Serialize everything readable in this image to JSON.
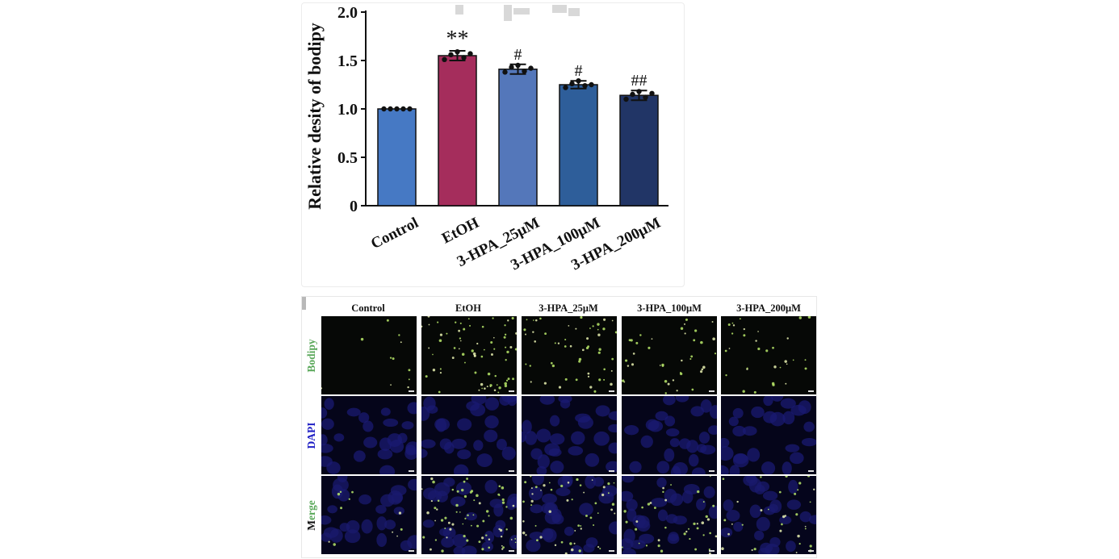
{
  "chart_data": {
    "type": "bar",
    "title": "",
    "xlabel": "",
    "ylabel": "Relative desity of bodipy",
    "ylim": [
      0,
      2.0
    ],
    "yticks": [
      "0",
      "0.5",
      "1.0",
      "1.5",
      "2.0"
    ],
    "ytick_values": [
      0,
      0.5,
      1.0,
      1.5,
      2.0
    ],
    "categories": [
      "Control",
      "EtOH",
      "3-HPA_25μM",
      "3-HPA_100μM",
      "3-HPA_200μM"
    ],
    "values": [
      1.0,
      1.55,
      1.41,
      1.25,
      1.14
    ],
    "errors": [
      0.0,
      0.05,
      0.05,
      0.04,
      0.05
    ],
    "points": [
      [
        1.0,
        1.0,
        1.0,
        1.0,
        1.0
      ],
      [
        1.51,
        1.56,
        1.59,
        1.53,
        1.57
      ],
      [
        1.38,
        1.43,
        1.45,
        1.39,
        1.42
      ],
      [
        1.22,
        1.26,
        1.29,
        1.24,
        1.25
      ],
      [
        1.1,
        1.15,
        1.18,
        1.12,
        1.16
      ]
    ],
    "significance": [
      "",
      "**",
      "#",
      "#",
      "##"
    ],
    "bar_colors": [
      "#4679c4",
      "#a52d5c",
      "#5477ba",
      "#2e5e9a",
      "#213566"
    ]
  },
  "micrographs": {
    "columns": [
      "Control",
      "EtOH",
      "3-HPA_25μM",
      "3-HPA_100μM",
      "3-HPA_200μM"
    ],
    "rows": [
      {
        "label": "Bodipy",
        "color": "#5aa85a"
      },
      {
        "label": "DAPI",
        "color": "#1f1fc4"
      },
      {
        "label_first": "M",
        "label_rest": "erge",
        "color_first": "#111111",
        "color_rest": "#5aa85a"
      }
    ],
    "density": [
      0.15,
      1.0,
      0.75,
      0.55,
      0.45
    ]
  }
}
